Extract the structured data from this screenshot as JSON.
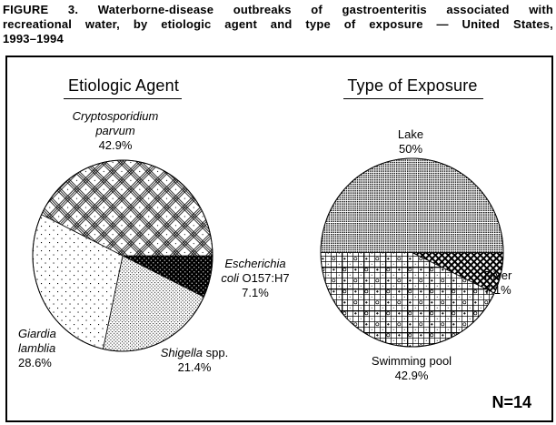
{
  "title": {
    "lines": [
      "FIGURE 3. Waterborne-disease outbreaks of gastroenteritis associated with",
      "recreational water, by etiologic agent and type of exposure — United States,",
      "1993–1994"
    ]
  },
  "figure": {
    "panels": [
      {
        "heading": "Etiologic Agent"
      },
      {
        "heading": "Type of Exposure"
      }
    ],
    "n_label": "N=14",
    "labels": {
      "crypto": {
        "lines": [
          [
            {
              "t": "Cryptosporidium",
              "i": true
            }
          ],
          [
            {
              "t": "parvum",
              "i": true
            }
          ],
          [
            {
              "t": "42.9%"
            }
          ]
        ]
      },
      "ecoli": {
        "lines": [
          [
            {
              "t": "Escherichia",
              "i": true
            }
          ],
          [
            {
              "t": "coli",
              "i": true
            },
            {
              "t": " O157:H7"
            }
          ],
          [
            {
              "t": "7.1%"
            }
          ]
        ]
      },
      "shigella": {
        "lines": [
          [
            {
              "t": "Shigella",
              "i": true
            },
            {
              "t": " spp."
            }
          ],
          [
            {
              "t": "21.4%"
            }
          ]
        ]
      },
      "giardia": {
        "lines": [
          [
            {
              "t": "Giardia",
              "i": true
            }
          ],
          [
            {
              "t": "lamblia",
              "i": true
            }
          ],
          [
            {
              "t": "28.6%"
            }
          ]
        ]
      },
      "lake": {
        "lines": [
          [
            {
              "t": "Lake"
            }
          ],
          [
            {
              "t": "50%"
            }
          ]
        ]
      },
      "river": {
        "lines": [
          [
            {
              "t": "River"
            }
          ],
          [
            {
              "t": "7.1%"
            }
          ]
        ]
      },
      "pool": {
        "lines": [
          [
            {
              "t": "Swimming pool"
            }
          ],
          [
            {
              "t": "42.9%"
            }
          ]
        ]
      }
    }
  },
  "chart_data": [
    {
      "type": "pie",
      "title": "Etiologic Agent",
      "unit": "percent",
      "n_total": 14,
      "start_angle_deg": 0,
      "direction": "clockwise",
      "slices": [
        {
          "label": "Escherichia coli O157:H7",
          "value": 7.1,
          "pattern": "ecoli"
        },
        {
          "label": "Shigella spp.",
          "value": 21.4,
          "pattern": "shigella"
        },
        {
          "label": "Giardia lamblia",
          "value": 28.6,
          "pattern": "giardia"
        },
        {
          "label": "Cryptosporidium parvum",
          "value": 42.9,
          "pattern": "crypto"
        }
      ]
    },
    {
      "type": "pie",
      "title": "Type of Exposure",
      "unit": "percent",
      "n_total": 14,
      "start_angle_deg": 0,
      "direction": "clockwise",
      "slices": [
        {
          "label": "River",
          "value": 7.1,
          "pattern": "river"
        },
        {
          "label": "Swimming pool",
          "value": 42.9,
          "pattern": "pool"
        },
        {
          "label": "Lake",
          "value": 50.0,
          "pattern": "lake"
        }
      ]
    }
  ],
  "colors": {
    "ink": "#000000",
    "paper": "#ffffff"
  }
}
